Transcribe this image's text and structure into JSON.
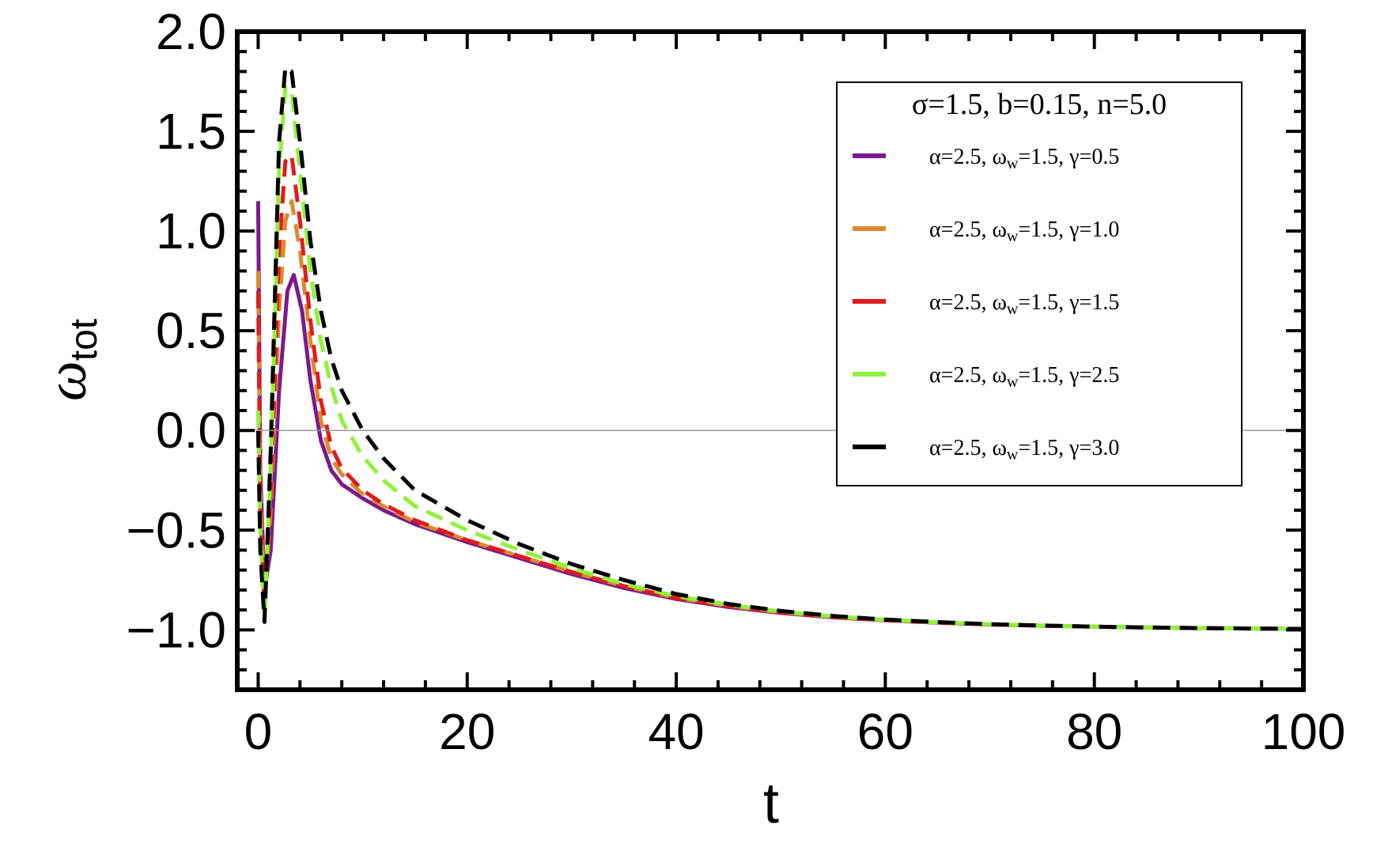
{
  "chart_data": {
    "type": "line",
    "xlabel": "t",
    "ylabel": "ω",
    "ylabel_sub": "tot",
    "xlim": [
      -2,
      100
    ],
    "ylim": [
      -1.3,
      2.0
    ],
    "xticks": [
      0,
      20,
      40,
      60,
      80,
      100
    ],
    "xtick_labels": [
      "0",
      "20",
      "40",
      "60",
      "80",
      "100"
    ],
    "yticks": [
      -1.0,
      -0.5,
      0.0,
      0.5,
      1.0,
      1.5,
      2.0
    ],
    "ytick_labels": [
      "−1.0",
      "−0.5",
      "0.0",
      "0.5",
      "1.0",
      "1.5",
      "2.0"
    ],
    "grid": false,
    "legend_position": "top-right",
    "legend_title": "σ=1.5, b=0.15, n=5.0",
    "series": [
      {
        "name": "α=2.5, ω_w=1.5, γ=0.5",
        "color": "#7b1a8c",
        "style": "solid",
        "x": [
          0,
          0.2,
          0.6,
          1.2,
          2.0,
          2.8,
          3.4,
          4.2,
          5.0,
          6.0,
          7.0,
          8.0,
          10,
          12,
          15,
          20,
          25,
          30,
          35,
          40,
          45,
          50,
          55,
          60,
          65,
          70,
          75,
          80,
          85,
          90,
          95,
          100
        ],
        "y": [
          1.15,
          -0.2,
          -0.8,
          -0.6,
          0.2,
          0.7,
          0.78,
          0.6,
          0.25,
          -0.05,
          -0.2,
          -0.27,
          -0.34,
          -0.4,
          -0.47,
          -0.56,
          -0.64,
          -0.72,
          -0.79,
          -0.845,
          -0.885,
          -0.915,
          -0.937,
          -0.952,
          -0.964,
          -0.973,
          -0.979,
          -0.984,
          -0.988,
          -0.991,
          -0.993,
          -0.995
        ]
      },
      {
        "name": "α=2.5, ω_w=1.5, γ=1.0",
        "color": "#e0882c",
        "style": "dashed",
        "x": [
          0,
          0.2,
          0.6,
          1.2,
          2.0,
          2.6,
          3.2,
          4.0,
          5.0,
          6.0,
          7.0,
          8.0,
          10,
          12,
          15,
          20,
          25,
          30,
          35,
          40,
          45,
          50,
          55,
          60,
          65,
          70,
          75,
          80,
          85,
          90,
          95,
          100
        ],
        "y": [
          0.8,
          -0.3,
          -0.85,
          -0.4,
          0.6,
          1.05,
          1.15,
          0.9,
          0.45,
          0.05,
          -0.14,
          -0.22,
          -0.32,
          -0.38,
          -0.46,
          -0.55,
          -0.63,
          -0.71,
          -0.78,
          -0.84,
          -0.88,
          -0.912,
          -0.935,
          -0.951,
          -0.963,
          -0.972,
          -0.979,
          -0.984,
          -0.988,
          -0.991,
          -0.993,
          -0.995
        ]
      },
      {
        "name": "α=2.5, ω_w=1.5, γ=1.5",
        "color": "#e01c1c",
        "style": "dashed",
        "x": [
          0,
          0.2,
          0.6,
          1.2,
          2.0,
          2.6,
          3.2,
          4.0,
          5.0,
          6.0,
          7.0,
          8.0,
          10,
          12,
          15,
          20,
          25,
          30,
          35,
          40,
          45,
          50,
          55,
          60,
          65,
          70,
          75,
          80,
          85,
          90,
          95,
          100
        ],
        "y": [
          0.7,
          -0.4,
          -0.9,
          -0.3,
          0.9,
          1.35,
          1.38,
          1.05,
          0.55,
          0.15,
          -0.08,
          -0.19,
          -0.3,
          -0.37,
          -0.45,
          -0.55,
          -0.63,
          -0.71,
          -0.78,
          -0.84,
          -0.88,
          -0.912,
          -0.935,
          -0.951,
          -0.963,
          -0.972,
          -0.979,
          -0.984,
          -0.988,
          -0.991,
          -0.993,
          -0.995
        ]
      },
      {
        "name": "α=2.5, ω_w=1.5, γ=2.5",
        "color": "#8ff23a",
        "style": "dashed",
        "x": [
          0,
          0.2,
          0.6,
          1.2,
          2.0,
          2.6,
          3.2,
          4.0,
          5.0,
          6.0,
          7.0,
          8.0,
          10,
          12,
          15,
          20,
          25,
          30,
          35,
          40,
          45,
          50,
          55,
          60,
          65,
          70,
          75,
          80,
          85,
          90,
          95,
          100
        ],
        "y": [
          0.1,
          -0.5,
          -0.95,
          -0.2,
          1.3,
          1.72,
          1.7,
          1.3,
          0.8,
          0.45,
          0.22,
          0.05,
          -0.13,
          -0.25,
          -0.38,
          -0.5,
          -0.6,
          -0.69,
          -0.77,
          -0.83,
          -0.875,
          -0.908,
          -0.932,
          -0.949,
          -0.962,
          -0.971,
          -0.978,
          -0.984,
          -0.988,
          -0.991,
          -0.993,
          -0.995
        ]
      },
      {
        "name": "α=2.5, ω_w=1.5, γ=3.0",
        "color": "#000000",
        "style": "dashed",
        "x": [
          0,
          0.2,
          0.6,
          1.2,
          2.0,
          2.6,
          3.2,
          4.0,
          5.0,
          6.0,
          7.0,
          8.0,
          10,
          12,
          15,
          20,
          25,
          30,
          35,
          40,
          45,
          50,
          55,
          60,
          65,
          70,
          75,
          80,
          85,
          90,
          95,
          100
        ],
        "y": [
          0.0,
          -0.6,
          -0.96,
          -0.1,
          1.45,
          1.82,
          1.8,
          1.45,
          0.95,
          0.6,
          0.36,
          0.2,
          0.0,
          -0.14,
          -0.3,
          -0.45,
          -0.57,
          -0.67,
          -0.75,
          -0.82,
          -0.87,
          -0.905,
          -0.93,
          -0.948,
          -0.961,
          -0.971,
          -0.978,
          -0.984,
          -0.988,
          -0.991,
          -0.993,
          -0.995
        ]
      }
    ]
  }
}
